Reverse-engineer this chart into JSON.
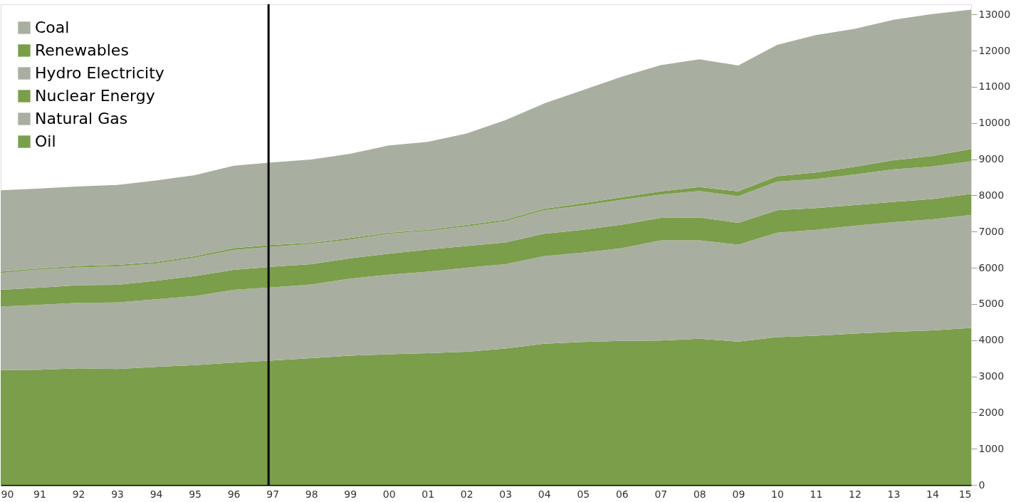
{
  "chart_data": {
    "type": "area",
    "stacked": true,
    "x": [
      1990,
      1991,
      1992,
      1993,
      1994,
      1995,
      1996,
      1997,
      1998,
      1999,
      2000,
      2001,
      2002,
      2003,
      2004,
      2005,
      2006,
      2007,
      2008,
      2009,
      2010,
      2011,
      2012,
      2013,
      2014,
      2015
    ],
    "series": [
      {
        "name": "Oil",
        "color": "#7a9e4a",
        "values": [
          3170,
          3180,
          3220,
          3200,
          3260,
          3310,
          3380,
          3440,
          3500,
          3570,
          3610,
          3640,
          3680,
          3770,
          3900,
          3950,
          3980,
          3990,
          4040,
          3960,
          4080,
          4120,
          4180,
          4230,
          4270,
          4340
        ]
      },
      {
        "name": "Natural Gas",
        "color": "#a9afa0",
        "values": [
          1760,
          1800,
          1810,
          1840,
          1870,
          1910,
          2010,
          2020,
          2040,
          2130,
          2200,
          2250,
          2320,
          2330,
          2420,
          2470,
          2560,
          2770,
          2720,
          2680,
          2890,
          2930,
          2980,
          3030,
          3070,
          3120
        ]
      },
      {
        "name": "Nuclear Energy",
        "color": "#7a9e4a",
        "values": [
          460,
          470,
          490,
          490,
          510,
          550,
          550,
          570,
          560,
          560,
          580,
          610,
          600,
          600,
          620,
          630,
          650,
          620,
          630,
          600,
          620,
          600,
          570,
          560,
          560,
          580
        ]
      },
      {
        "name": "Hydro Electricity",
        "color": "#a9afa0",
        "values": [
          470,
          500,
          490,
          510,
          480,
          510,
          550,
          550,
          560,
          520,
          550,
          520,
          540,
          590,
          650,
          670,
          690,
          640,
          730,
          740,
          790,
          800,
          850,
          900,
          900,
          900
        ]
      },
      {
        "name": "Renewables",
        "color": "#7a9e4a",
        "values": [
          30,
          30,
          40,
          40,
          40,
          40,
          50,
          50,
          30,
          40,
          30,
          30,
          40,
          40,
          40,
          60,
          70,
          90,
          110,
          130,
          150,
          180,
          210,
          250,
          290,
          340
        ]
      },
      {
        "name": "Coal",
        "color": "#a9afa0",
        "values": [
          2250,
          2210,
          2200,
          2210,
          2250,
          2240,
          2280,
          2280,
          2300,
          2330,
          2410,
          2430,
          2530,
          2750,
          2910,
          3130,
          3330,
          3490,
          3530,
          3480,
          3630,
          3800,
          3810,
          3880,
          3920,
          3850
        ]
      }
    ],
    "xlim": [
      1990,
      2015
    ],
    "xticks": [
      {
        "value": 1990,
        "label": "90"
      },
      {
        "value": 1991,
        "label": "91"
      },
      {
        "value": 1992,
        "label": "92"
      },
      {
        "value": 1993,
        "label": "93"
      },
      {
        "value": 1994,
        "label": "94"
      },
      {
        "value": 1995,
        "label": "95"
      },
      {
        "value": 1996,
        "label": "96"
      },
      {
        "value": 1997,
        "label": "97"
      },
      {
        "value": 1998,
        "label": "98"
      },
      {
        "value": 1999,
        "label": "99"
      },
      {
        "value": 2000,
        "label": "00"
      },
      {
        "value": 2001,
        "label": "01"
      },
      {
        "value": 2002,
        "label": "02"
      },
      {
        "value": 2003,
        "label": "03"
      },
      {
        "value": 2004,
        "label": "04"
      },
      {
        "value": 2005,
        "label": "05"
      },
      {
        "value": 2006,
        "label": "06"
      },
      {
        "value": 2007,
        "label": "07"
      },
      {
        "value": 2008,
        "label": "08"
      },
      {
        "value": 2009,
        "label": "09"
      },
      {
        "value": 2010,
        "label": "10"
      },
      {
        "value": 2011,
        "label": "11"
      },
      {
        "value": 2012,
        "label": "12"
      },
      {
        "value": 2013,
        "label": "13"
      },
      {
        "value": 2014,
        "label": "14"
      },
      {
        "value": 2015,
        "label": "15"
      }
    ],
    "ylim": [
      0,
      13280
    ],
    "yticks": [
      0,
      1000,
      2000,
      3000,
      4000,
      5000,
      6000,
      7000,
      8000,
      9000,
      10000,
      11000,
      12000,
      13000
    ],
    "ref_lines": [
      {
        "axis": "x",
        "value": 1996.9,
        "color": "#000000"
      }
    ],
    "legend": "top left",
    "grid": false
  }
}
